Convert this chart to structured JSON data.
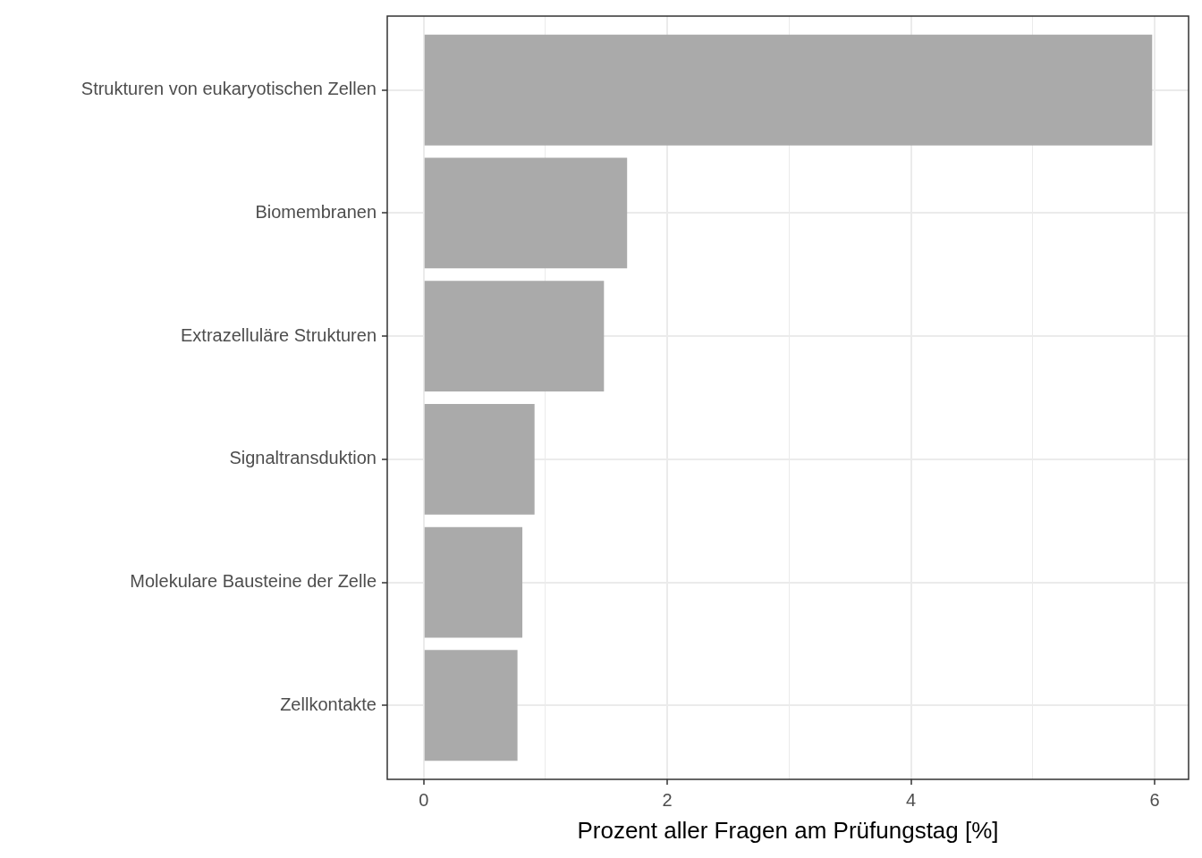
{
  "chart_data": {
    "type": "bar",
    "orientation": "horizontal",
    "categories": [
      "Strukturen von eukaryotischen Zellen",
      "Biomembranen",
      "Extrazelluläre Strukturen",
      "Signaltransduktion",
      "Molekulare Bausteine der Zelle",
      "Zellkontakte"
    ],
    "values": [
      5.98,
      1.67,
      1.48,
      0.91,
      0.81,
      0.77
    ],
    "color": "#aaaaaa",
    "xlabel": "Prozent aller Fragen am Prüfungstag [%]",
    "xlim": [
      -0.299,
      6.279
    ],
    "xticks": [
      0,
      {
        "value": 1,
        "label": null
      },
      2,
      {
        "value": 3,
        "label": null
      },
      4,
      {
        "value": 5,
        "label": null
      },
      6
    ],
    "grid": true,
    "legend": false
  }
}
